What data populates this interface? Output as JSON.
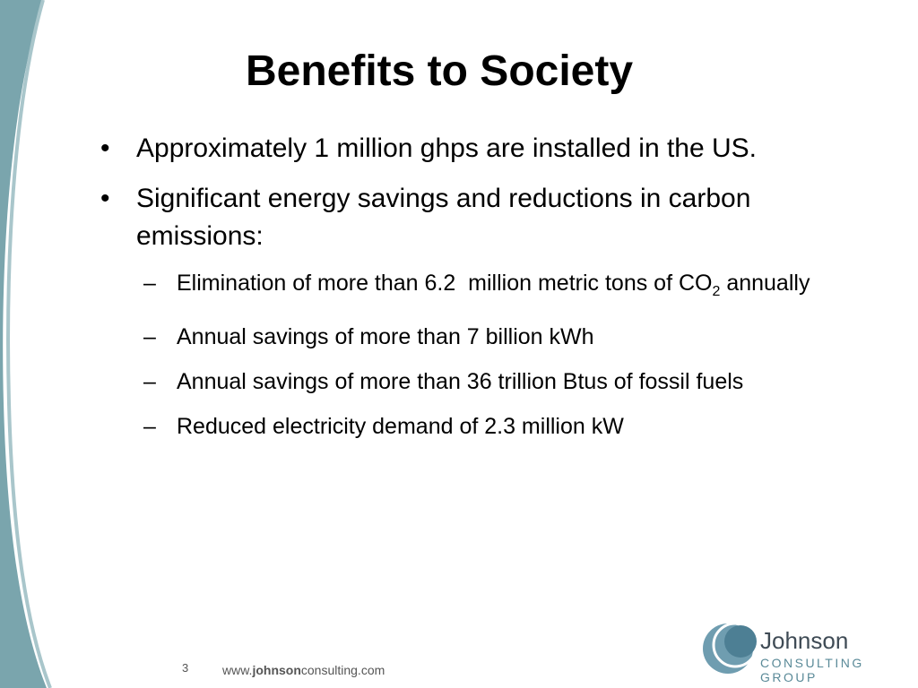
{
  "title": "Benefits to Society",
  "bullets": [
    {
      "text": "Approximately 1 million ghps are installed in the US."
    },
    {
      "text": "Significant energy savings and reductions in carbon emissions:",
      "sub": [
        {
          "parts": [
            "Elimination of more than 6.2  million metric tons of CO",
            "2",
            " annually"
          ]
        },
        {
          "parts": [
            "Annual savings of more than 7 billion kWh"
          ]
        },
        {
          "parts": [
            "Annual savings of more than 36 trillion Btus of fossil fuels"
          ]
        },
        {
          "parts": [
            "Reduced electricity demand of 2.3 million kW"
          ]
        }
      ]
    }
  ],
  "footer": {
    "page": "3",
    "url": [
      "www.",
      "johnson",
      "consulting.com"
    ]
  },
  "logo": {
    "name": "Johnson",
    "tagline": "CONSULTING GROUP"
  }
}
